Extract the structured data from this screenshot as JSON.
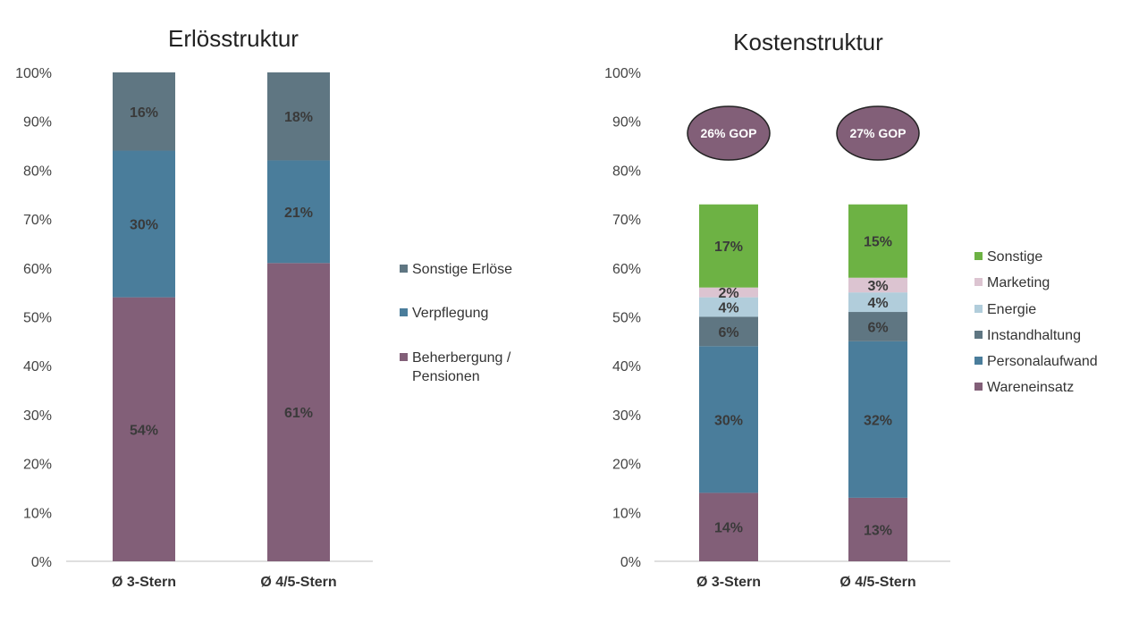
{
  "chart_data": [
    {
      "type": "bar",
      "stacked": true,
      "title": "Erlösstruktur",
      "categories": [
        "Ø 3-Stern",
        "Ø 4/5-Stern"
      ],
      "ylim": [
        0,
        100
      ],
      "yticks": [
        "0%",
        "10%",
        "20%",
        "30%",
        "40%",
        "50%",
        "60%",
        "70%",
        "80%",
        "90%",
        "100%"
      ],
      "grid": false,
      "legend_position": "right",
      "series": [
        {
          "name": "Beherbergung / Pensionen",
          "legend_lines": [
            "Beherbergung /",
            "Pensionen"
          ],
          "values": [
            54,
            61
          ],
          "labels": [
            "54%",
            "61%"
          ],
          "color": "#825f78"
        },
        {
          "name": "Verpflegung",
          "legend_lines": [
            "Verpflegung"
          ],
          "values": [
            30,
            21
          ],
          "labels": [
            "30%",
            "21%"
          ],
          "color": "#4a7d9b"
        },
        {
          "name": "Sonstige Erlöse",
          "legend_lines": [
            "Sonstige Erlöse"
          ],
          "values": [
            16,
            18
          ],
          "labels": [
            "16%",
            "18%"
          ],
          "color": "#5f7682"
        }
      ]
    },
    {
      "type": "bar",
      "stacked": true,
      "title": "Kostenstruktur",
      "categories": [
        "Ø 3-Stern",
        "Ø 4/5-Stern"
      ],
      "ylim": [
        0,
        100
      ],
      "yticks": [
        "0%",
        "10%",
        "20%",
        "30%",
        "40%",
        "50%",
        "60%",
        "70%",
        "80%",
        "90%",
        "100%"
      ],
      "grid": false,
      "legend_position": "right",
      "series": [
        {
          "name": "Wareneinsatz",
          "legend_lines": [
            "Wareneinsatz"
          ],
          "values": [
            14,
            13
          ],
          "labels": [
            "14%",
            "13%"
          ],
          "color": "#825f78"
        },
        {
          "name": "Personalaufwand",
          "legend_lines": [
            "Personalaufwand"
          ],
          "values": [
            30,
            32
          ],
          "labels": [
            "30%",
            "32%"
          ],
          "color": "#4a7d9b"
        },
        {
          "name": "Instandhaltung",
          "legend_lines": [
            "Instandhaltung"
          ],
          "values": [
            6,
            6
          ],
          "labels": [
            "6%",
            "6%"
          ],
          "color": "#5f7682"
        },
        {
          "name": "Energie",
          "legend_lines": [
            "Energie"
          ],
          "values": [
            4,
            4
          ],
          "labels": [
            "4%",
            "4%"
          ],
          "color": "#b1cddb"
        },
        {
          "name": "Marketing",
          "legend_lines": [
            "Marketing"
          ],
          "values": [
            2,
            3
          ],
          "labels": [
            "2%",
            "3%"
          ],
          "color": "#dcc4d1"
        },
        {
          "name": "Sonstige",
          "legend_lines": [
            "Sonstige"
          ],
          "values": [
            17,
            15
          ],
          "labels": [
            "17%",
            "15%"
          ],
          "color": "#6db244"
        }
      ],
      "annotations": [
        "26% GOP",
        "27% GOP"
      ],
      "annotation_color": "#825f78"
    }
  ]
}
